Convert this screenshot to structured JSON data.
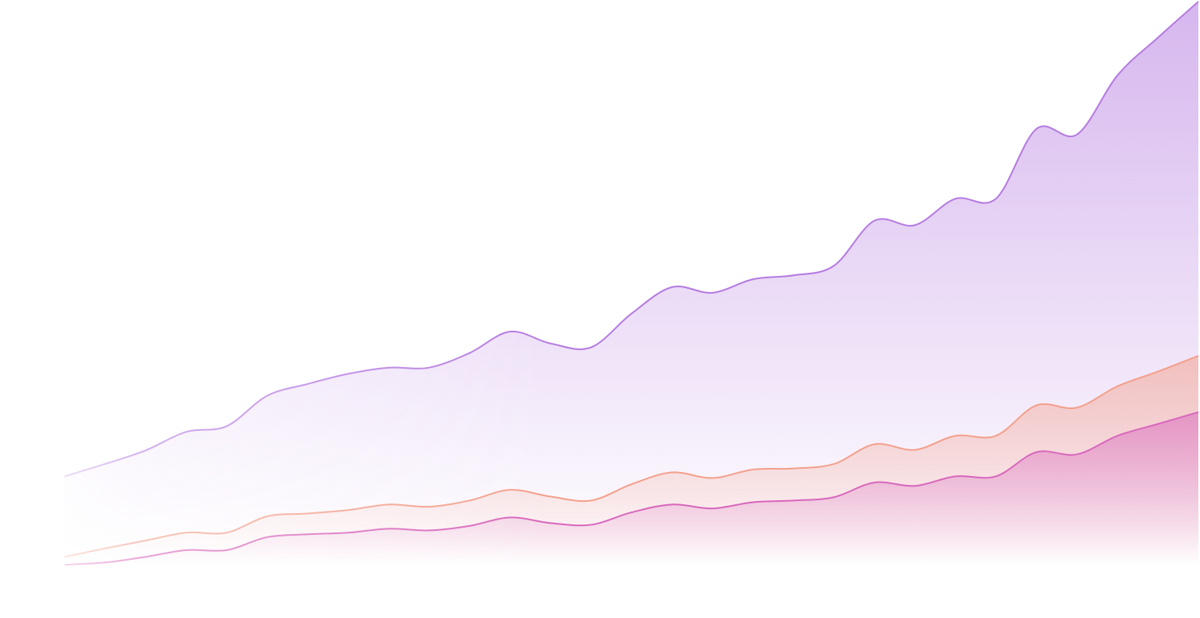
{
  "chart_data": {
    "type": "area",
    "ylim": [
      0,
      100
    ],
    "series": [
      {
        "color": "#b57be0",
        "values": [
          15.7,
          17.9,
          20.3,
          23.6,
          24.6,
          30,
          32.1,
          33.9,
          35,
          35,
          37.6,
          41.4,
          39.3,
          38.6,
          44.6,
          49.3,
          48.3,
          50.7,
          51.4,
          53.1,
          61.1,
          60.3,
          65,
          65,
          77.4,
          76.4,
          86.9,
          93.6,
          100
        ]
      },
      {
        "color": "#f3a08c",
        "values": [
          1.4,
          2.9,
          4.3,
          5.7,
          5.7,
          8.6,
          9.1,
          9.7,
          10.7,
          10.3,
          11.4,
          13.3,
          12.1,
          11.4,
          14.3,
          16.4,
          15.4,
          16.9,
          17.1,
          17.9,
          21.4,
          20.4,
          22.9,
          22.9,
          28.3,
          27.9,
          31.7,
          34.3,
          37.1
        ]
      },
      {
        "color": "#d868bd",
        "values": [
          0,
          0.4,
          1.4,
          2.6,
          2.6,
          4.9,
          5.4,
          5.7,
          6.4,
          6.1,
          6.9,
          8.4,
          7.4,
          7.1,
          9.3,
          10.7,
          10,
          11.1,
          11.4,
          12,
          14.6,
          14,
          15.7,
          15.7,
          20,
          19.6,
          22.9,
          25,
          27.1
        ]
      }
    ]
  }
}
